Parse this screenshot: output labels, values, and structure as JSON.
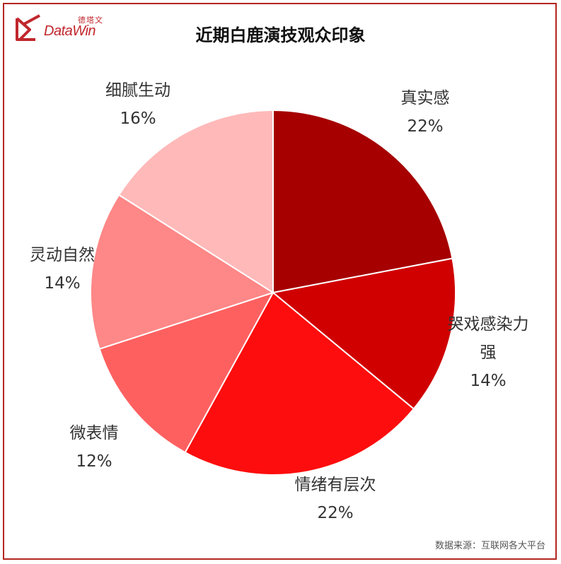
{
  "brand": {
    "name_cn": "德塔文",
    "name_en": "DataWin",
    "color": "#c0272d"
  },
  "source_text": "数据来源：互联网各大平台",
  "chart_data": {
    "type": "pie",
    "title": "近期白鹿演技观众印象",
    "start": "12 o'clock, clockwise",
    "slices": [
      {
        "label": "真实感",
        "value": 22,
        "display": "22%",
        "color": "#a60000"
      },
      {
        "label": "哭戏感染力强",
        "label_lines": [
          "哭戏感染力",
          "强"
        ],
        "value": 14,
        "display": "14%",
        "color": "#d00000"
      },
      {
        "label": "情绪有层次",
        "value": 22,
        "display": "22%",
        "color": "#fd0d0d"
      },
      {
        "label": "微表情",
        "value": 12,
        "display": "12%",
        "color": "#fe6060"
      },
      {
        "label": "灵动自然",
        "value": 14,
        "display": "14%",
        "color": "#fe8787"
      },
      {
        "label": "细腻生动",
        "value": 16,
        "display": "16%",
        "color": "#ffb9b9"
      }
    ]
  }
}
